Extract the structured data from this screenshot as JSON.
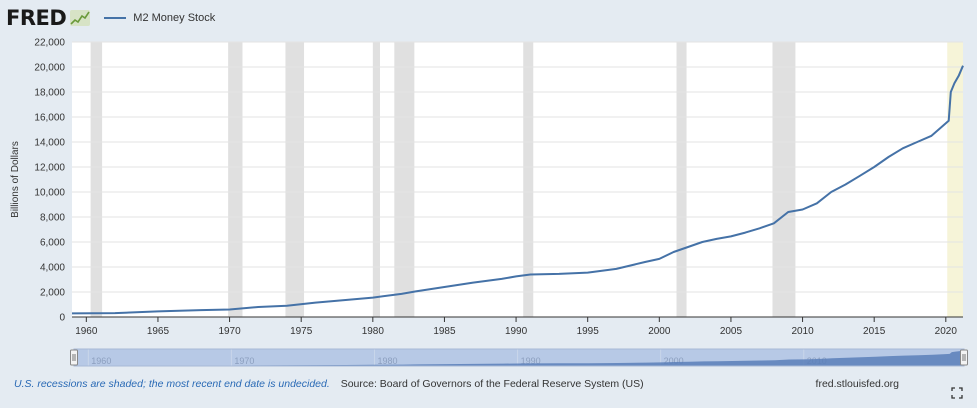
{
  "header": {
    "logo_text": "FRED",
    "legend_label": "M2 Money Stock",
    "line_color": "#4572a7"
  },
  "footer": {
    "recession_note": "U.S. recessions are shaded; the most recent end date is undecided.",
    "source": "Source: Board of Governors of the Federal Reserve System (US)",
    "site": "fred.stlouisfed.org"
  },
  "colors": {
    "recession_shade": "#e0e0e0",
    "current_recession_shade": "#f6f4d8",
    "navigator_fill": "#b7c9e6",
    "navigator_line": "#4572a7"
  },
  "chart_data": {
    "type": "line",
    "title": "",
    "xlabel": "",
    "ylabel": "Billions of Dollars",
    "xlim": [
      1959.0,
      2021.2
    ],
    "ylim": [
      0,
      22000
    ],
    "grid": true,
    "x_ticks": [
      "1960",
      "1965",
      "1970",
      "1975",
      "1980",
      "1985",
      "1990",
      "1995",
      "2000",
      "2005",
      "2010",
      "2015",
      "2020"
    ],
    "y_ticks": [
      "0",
      "2,000",
      "4,000",
      "6,000",
      "8,000",
      "10,000",
      "12,000",
      "14,000",
      "16,000",
      "18,000",
      "20,000",
      "22,000"
    ],
    "navigator_ticks": [
      "1960",
      "1970",
      "1980",
      "1990",
      "2000",
      "2010"
    ],
    "recessions": [
      [
        1960.3,
        1961.1
      ],
      [
        1969.9,
        1970.9
      ],
      [
        1973.9,
        1975.2
      ],
      [
        1980.0,
        1980.5
      ],
      [
        1981.5,
        1982.9
      ],
      [
        1990.5,
        1991.2
      ],
      [
        2001.2,
        2001.9
      ],
      [
        2007.9,
        2009.5
      ]
    ],
    "current_recession_start": 2020.1,
    "series": [
      {
        "name": "M2 Money Stock",
        "x": [
          1959.0,
          1962,
          1965,
          1968,
          1970,
          1972,
          1974,
          1976,
          1978,
          1980,
          1982,
          1983,
          1985,
          1987,
          1989,
          1990,
          1991,
          1993,
          1995,
          1997,
          1999,
          2000,
          2001,
          2002,
          2003,
          2004,
          2005,
          2006,
          2007,
          2008,
          2009,
          2010,
          2011,
          2012,
          2013,
          2014,
          2015,
          2016,
          2017,
          2018,
          2019,
          2019.9,
          2020.2,
          2020.35,
          2020.6,
          2020.9,
          2021.2
        ],
        "y": [
          286,
          315,
          450,
          550,
          600,
          800,
          900,
          1150,
          1350,
          1550,
          1850,
          2050,
          2400,
          2750,
          3050,
          3250,
          3400,
          3450,
          3550,
          3850,
          4400,
          4650,
          5200,
          5600,
          6000,
          6250,
          6450,
          6750,
          7100,
          7500,
          8400,
          8600,
          9100,
          10000,
          10600,
          11300,
          12000,
          12800,
          13500,
          14000,
          14500,
          15400,
          15700,
          18000,
          18700,
          19300,
          20100
        ]
      }
    ]
  }
}
